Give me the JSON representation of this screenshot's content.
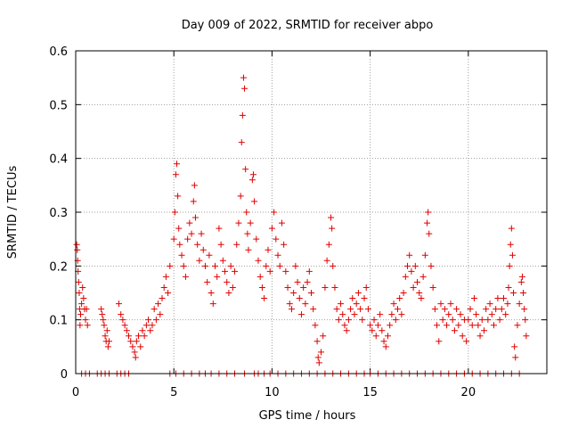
{
  "chart_data": {
    "type": "scatter",
    "title": "Day 009 of 2022, SRMTID for receiver abpo",
    "xlabel": "GPS time / hours",
    "ylabel": "SRMTID / TECUs",
    "xlim": [
      0,
      24
    ],
    "ylim": [
      0,
      0.6
    ],
    "x_ticks": [
      0,
      5,
      10,
      15,
      20
    ],
    "x_tick_labels": [
      "0",
      "5",
      "10",
      "15",
      "20"
    ],
    "y_ticks": [
      0,
      0.1,
      0.2,
      0.3,
      0.4,
      0.5,
      0.6
    ],
    "y_tick_labels": [
      "0",
      "0.1",
      "0.2",
      "0.3",
      "0.4",
      "0.5",
      "0.6"
    ],
    "grid": true,
    "marker": "plus",
    "color": "#e00000",
    "series": [
      {
        "name": "SRMTID",
        "points": [
          [
            0.05,
            0.24
          ],
          [
            0.08,
            0.23
          ],
          [
            0.1,
            0.21
          ],
          [
            0.12,
            0.19
          ],
          [
            0.15,
            0.17
          ],
          [
            0.18,
            0.15
          ],
          [
            0.2,
            0.12
          ],
          [
            0.22,
            0.09
          ],
          [
            0.25,
            0.11
          ],
          [
            0.3,
            0.13
          ],
          [
            0.35,
            0.16
          ],
          [
            0.4,
            0.14
          ],
          [
            0.45,
            0.12
          ],
          [
            0.5,
            0.1
          ],
          [
            0.55,
            0.12
          ],
          [
            0.6,
            0.09
          ],
          [
            1.3,
            0.12
          ],
          [
            1.35,
            0.11
          ],
          [
            1.4,
            0.1
          ],
          [
            1.45,
            0.09
          ],
          [
            1.5,
            0.07
          ],
          [
            1.55,
            0.06
          ],
          [
            1.6,
            0.08
          ],
          [
            1.65,
            0.05
          ],
          [
            1.7,
            0.06
          ],
          [
            2.2,
            0.13
          ],
          [
            2.3,
            0.11
          ],
          [
            2.4,
            0.1
          ],
          [
            2.5,
            0.09
          ],
          [
            2.6,
            0.08
          ],
          [
            2.7,
            0.07
          ],
          [
            2.8,
            0.06
          ],
          [
            2.9,
            0.05
          ],
          [
            3.0,
            0.04
          ],
          [
            3.05,
            0.03
          ],
          [
            3.1,
            0.06
          ],
          [
            3.2,
            0.07
          ],
          [
            3.3,
            0.05
          ],
          [
            3.4,
            0.08
          ],
          [
            3.5,
            0.07
          ],
          [
            3.6,
            0.09
          ],
          [
            3.7,
            0.1
          ],
          [
            3.8,
            0.08
          ],
          [
            3.9,
            0.09
          ],
          [
            4.0,
            0.12
          ],
          [
            4.1,
            0.1
          ],
          [
            4.2,
            0.13
          ],
          [
            4.3,
            0.11
          ],
          [
            4.4,
            0.14
          ],
          [
            4.5,
            0.16
          ],
          [
            4.6,
            0.18
          ],
          [
            4.7,
            0.15
          ],
          [
            4.8,
            0.2
          ],
          [
            5.0,
            0.25
          ],
          [
            5.05,
            0.3
          ],
          [
            5.1,
            0.37
          ],
          [
            5.15,
            0.39
          ],
          [
            5.2,
            0.33
          ],
          [
            5.25,
            0.27
          ],
          [
            5.3,
            0.24
          ],
          [
            5.4,
            0.22
          ],
          [
            5.5,
            0.2
          ],
          [
            5.6,
            0.18
          ],
          [
            5.7,
            0.25
          ],
          [
            5.8,
            0.28
          ],
          [
            5.9,
            0.26
          ],
          [
            6.0,
            0.32
          ],
          [
            6.05,
            0.35
          ],
          [
            6.1,
            0.29
          ],
          [
            6.2,
            0.24
          ],
          [
            6.3,
            0.21
          ],
          [
            6.4,
            0.26
          ],
          [
            6.5,
            0.23
          ],
          [
            6.6,
            0.2
          ],
          [
            6.7,
            0.17
          ],
          [
            6.8,
            0.22
          ],
          [
            6.9,
            0.15
          ],
          [
            7.0,
            0.13
          ],
          [
            7.1,
            0.2
          ],
          [
            7.2,
            0.18
          ],
          [
            7.3,
            0.27
          ],
          [
            7.4,
            0.24
          ],
          [
            7.5,
            0.21
          ],
          [
            7.6,
            0.19
          ],
          [
            7.7,
            0.17
          ],
          [
            7.8,
            0.15
          ],
          [
            7.9,
            0.2
          ],
          [
            8.0,
            0.16
          ],
          [
            8.1,
            0.19
          ],
          [
            8.2,
            0.24
          ],
          [
            8.3,
            0.28
          ],
          [
            8.4,
            0.33
          ],
          [
            8.45,
            0.43
          ],
          [
            8.5,
            0.48
          ],
          [
            8.55,
            0.55
          ],
          [
            8.6,
            0.53
          ],
          [
            8.65,
            0.38
          ],
          [
            8.7,
            0.3
          ],
          [
            8.75,
            0.26
          ],
          [
            8.8,
            0.23
          ],
          [
            8.9,
            0.28
          ],
          [
            9.0,
            0.36
          ],
          [
            9.05,
            0.37
          ],
          [
            9.1,
            0.32
          ],
          [
            9.2,
            0.25
          ],
          [
            9.3,
            0.21
          ],
          [
            9.4,
            0.18
          ],
          [
            9.5,
            0.16
          ],
          [
            9.6,
            0.14
          ],
          [
            9.7,
            0.2
          ],
          [
            9.8,
            0.23
          ],
          [
            9.9,
            0.19
          ],
          [
            10.0,
            0.27
          ],
          [
            10.1,
            0.3
          ],
          [
            10.2,
            0.25
          ],
          [
            10.3,
            0.22
          ],
          [
            10.4,
            0.2
          ],
          [
            10.5,
            0.28
          ],
          [
            10.6,
            0.24
          ],
          [
            10.7,
            0.19
          ],
          [
            10.8,
            0.16
          ],
          [
            10.9,
            0.13
          ],
          [
            11.0,
            0.12
          ],
          [
            11.1,
            0.15
          ],
          [
            11.2,
            0.2
          ],
          [
            11.3,
            0.17
          ],
          [
            11.4,
            0.14
          ],
          [
            11.5,
            0.11
          ],
          [
            11.6,
            0.16
          ],
          [
            11.7,
            0.13
          ],
          [
            11.8,
            0.17
          ],
          [
            11.9,
            0.19
          ],
          [
            12.0,
            0.15
          ],
          [
            12.1,
            0.12
          ],
          [
            12.2,
            0.09
          ],
          [
            12.3,
            0.06
          ],
          [
            12.35,
            0.03
          ],
          [
            12.4,
            0.02
          ],
          [
            12.5,
            0.04
          ],
          [
            12.6,
            0.07
          ],
          [
            12.7,
            0.16
          ],
          [
            12.8,
            0.21
          ],
          [
            12.9,
            0.24
          ],
          [
            13.0,
            0.29
          ],
          [
            13.05,
            0.27
          ],
          [
            13.1,
            0.2
          ],
          [
            13.2,
            0.16
          ],
          [
            13.3,
            0.12
          ],
          [
            13.4,
            0.1
          ],
          [
            13.5,
            0.13
          ],
          [
            13.6,
            0.11
          ],
          [
            13.7,
            0.09
          ],
          [
            13.8,
            0.08
          ],
          [
            13.9,
            0.1
          ],
          [
            14.0,
            0.12
          ],
          [
            14.1,
            0.14
          ],
          [
            14.2,
            0.11
          ],
          [
            14.3,
            0.13
          ],
          [
            14.4,
            0.15
          ],
          [
            14.5,
            0.12
          ],
          [
            14.6,
            0.1
          ],
          [
            14.7,
            0.14
          ],
          [
            14.8,
            0.16
          ],
          [
            14.9,
            0.12
          ],
          [
            15.0,
            0.09
          ],
          [
            15.1,
            0.08
          ],
          [
            15.2,
            0.1
          ],
          [
            15.3,
            0.07
          ],
          [
            15.4,
            0.09
          ],
          [
            15.5,
            0.11
          ],
          [
            15.6,
            0.08
          ],
          [
            15.7,
            0.06
          ],
          [
            15.8,
            0.05
          ],
          [
            15.9,
            0.07
          ],
          [
            16.0,
            0.09
          ],
          [
            16.1,
            0.11
          ],
          [
            16.2,
            0.13
          ],
          [
            16.3,
            0.1
          ],
          [
            16.4,
            0.12
          ],
          [
            16.5,
            0.14
          ],
          [
            16.6,
            0.11
          ],
          [
            16.7,
            0.15
          ],
          [
            16.8,
            0.18
          ],
          [
            16.9,
            0.2
          ],
          [
            17.0,
            0.22
          ],
          [
            17.1,
            0.19
          ],
          [
            17.2,
            0.16
          ],
          [
            17.3,
            0.2
          ],
          [
            17.4,
            0.17
          ],
          [
            17.5,
            0.15
          ],
          [
            17.6,
            0.14
          ],
          [
            17.7,
            0.18
          ],
          [
            17.8,
            0.22
          ],
          [
            17.9,
            0.28
          ],
          [
            17.95,
            0.3
          ],
          [
            18.0,
            0.26
          ],
          [
            18.1,
            0.2
          ],
          [
            18.2,
            0.16
          ],
          [
            18.3,
            0.12
          ],
          [
            18.4,
            0.09
          ],
          [
            18.5,
            0.06
          ],
          [
            18.6,
            0.13
          ],
          [
            18.7,
            0.1
          ],
          [
            18.8,
            0.12
          ],
          [
            18.9,
            0.09
          ],
          [
            19.0,
            0.11
          ],
          [
            19.1,
            0.13
          ],
          [
            19.2,
            0.1
          ],
          [
            19.3,
            0.08
          ],
          [
            19.4,
            0.12
          ],
          [
            19.5,
            0.09
          ],
          [
            19.6,
            0.11
          ],
          [
            19.7,
            0.07
          ],
          [
            19.8,
            0.1
          ],
          [
            19.9,
            0.06
          ],
          [
            20.0,
            0.1
          ],
          [
            20.1,
            0.12
          ],
          [
            20.2,
            0.09
          ],
          [
            20.3,
            0.14
          ],
          [
            20.4,
            0.11
          ],
          [
            20.5,
            0.09
          ],
          [
            20.6,
            0.07
          ],
          [
            20.7,
            0.1
          ],
          [
            20.8,
            0.08
          ],
          [
            20.9,
            0.12
          ],
          [
            21.0,
            0.1
          ],
          [
            21.1,
            0.13
          ],
          [
            21.2,
            0.11
          ],
          [
            21.3,
            0.09
          ],
          [
            21.4,
            0.12
          ],
          [
            21.5,
            0.14
          ],
          [
            21.6,
            0.1
          ],
          [
            21.7,
            0.12
          ],
          [
            21.8,
            0.14
          ],
          [
            21.9,
            0.11
          ],
          [
            22.0,
            0.13
          ],
          [
            22.05,
            0.16
          ],
          [
            22.1,
            0.2
          ],
          [
            22.15,
            0.24
          ],
          [
            22.2,
            0.27
          ],
          [
            22.25,
            0.22
          ],
          [
            22.3,
            0.15
          ],
          [
            22.35,
            0.05
          ],
          [
            22.4,
            0.03
          ],
          [
            22.5,
            0.09
          ],
          [
            22.6,
            0.13
          ],
          [
            22.7,
            0.17
          ],
          [
            22.75,
            0.18
          ],
          [
            22.8,
            0.15
          ],
          [
            22.85,
            0.12
          ],
          [
            22.9,
            0.1
          ],
          [
            22.95,
            0.07
          ],
          [
            0.3,
            0.0
          ],
          [
            0.5,
            0.0
          ],
          [
            0.7,
            0.0
          ],
          [
            1.1,
            0.0
          ],
          [
            1.3,
            0.0
          ],
          [
            1.5,
            0.0
          ],
          [
            1.7,
            0.0
          ],
          [
            2.1,
            0.0
          ],
          [
            2.3,
            0.0
          ],
          [
            2.5,
            0.0
          ],
          [
            2.7,
            0.0
          ],
          [
            4.8,
            0.0
          ],
          [
            5.1,
            0.0
          ],
          [
            5.5,
            0.0
          ],
          [
            5.9,
            0.0
          ],
          [
            6.3,
            0.0
          ],
          [
            6.6,
            0.0
          ],
          [
            6.9,
            0.0
          ],
          [
            7.3,
            0.0
          ],
          [
            7.7,
            0.0
          ],
          [
            8.1,
            0.0
          ],
          [
            8.6,
            0.0
          ],
          [
            9.1,
            0.0
          ],
          [
            9.3,
            0.0
          ],
          [
            9.6,
            0.0
          ],
          [
            9.9,
            0.0
          ],
          [
            10.3,
            0.0
          ],
          [
            10.7,
            0.0
          ],
          [
            11.1,
            0.0
          ],
          [
            11.5,
            0.0
          ],
          [
            11.9,
            0.0
          ],
          [
            12.3,
            0.0
          ],
          [
            12.7,
            0.0
          ],
          [
            13.1,
            0.0
          ],
          [
            13.5,
            0.0
          ],
          [
            13.9,
            0.0
          ],
          [
            14.3,
            0.0
          ],
          [
            14.7,
            0.0
          ],
          [
            15.0,
            0.0
          ],
          [
            15.4,
            0.0
          ],
          [
            15.8,
            0.0
          ],
          [
            16.2,
            0.0
          ],
          [
            16.6,
            0.0
          ],
          [
            17.0,
            0.0
          ],
          [
            17.4,
            0.0
          ],
          [
            17.8,
            0.0
          ],
          [
            18.2,
            0.0
          ],
          [
            18.6,
            0.0
          ],
          [
            19.0,
            0.0
          ],
          [
            19.4,
            0.0
          ],
          [
            19.8,
            0.0
          ],
          [
            20.2,
            0.0
          ],
          [
            20.6,
            0.0
          ],
          [
            21.0,
            0.0
          ],
          [
            21.4,
            0.0
          ],
          [
            21.8,
            0.0
          ],
          [
            22.2,
            0.0
          ],
          [
            22.6,
            0.0
          ]
        ]
      }
    ]
  }
}
